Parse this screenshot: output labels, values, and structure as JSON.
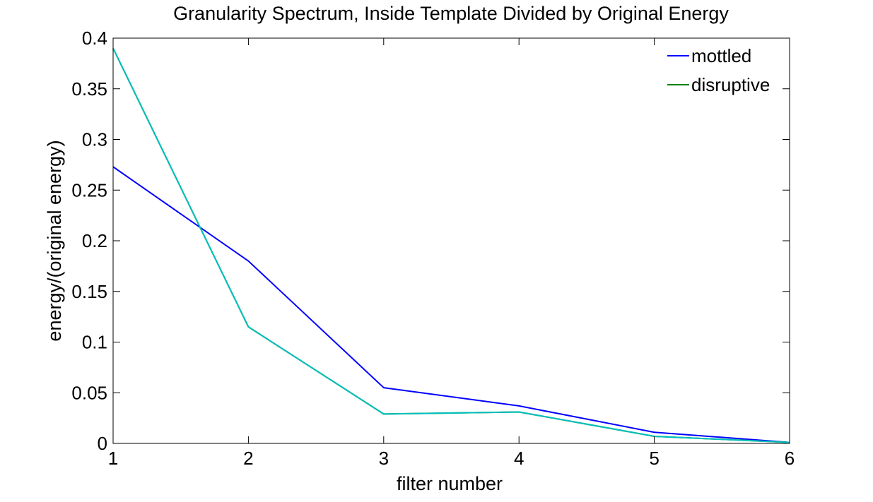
{
  "chart_data": {
    "type": "line",
    "title": "Granularity Spectrum, Inside Template Divided by Original Energy",
    "xlabel": "filter number",
    "ylabel": "energy/(original energy)",
    "xlim": [
      1,
      6
    ],
    "ylim": [
      0,
      0.4
    ],
    "xticks": [
      1,
      2,
      3,
      4,
      5,
      6
    ],
    "xtick_labels": [
      "1",
      "2",
      "3",
      "4",
      "5",
      "6"
    ],
    "yticks": [
      0,
      0.05,
      0.1,
      0.15,
      0.2,
      0.25,
      0.3,
      0.35,
      0.4
    ],
    "ytick_labels": [
      "0",
      "0.05",
      "0.1",
      "0.15",
      "0.2",
      "0.25",
      "0.3",
      "0.35",
      "0.4"
    ],
    "grid": false,
    "legend_position": "top-right",
    "x": [
      1,
      2,
      3,
      4,
      5,
      6
    ],
    "series": [
      {
        "name": "mottled",
        "color": "#0000ff",
        "values": [
          0.273,
          0.18,
          0.055,
          0.037,
          0.011,
          0.001
        ]
      },
      {
        "name": "disruptive",
        "color": "#008000",
        "values": [
          0.39,
          0.115,
          0.029,
          0.031,
          0.007,
          0.001
        ]
      },
      {
        "name": "",
        "color": "#00bfbf",
        "values": [
          0.39,
          0.115,
          0.029,
          0.031,
          0.007,
          0.001
        ]
      }
    ],
    "legend": [
      {
        "label": "mottled",
        "color": "#0000ff"
      },
      {
        "label": "disruptive",
        "color": "#008000"
      }
    ]
  }
}
